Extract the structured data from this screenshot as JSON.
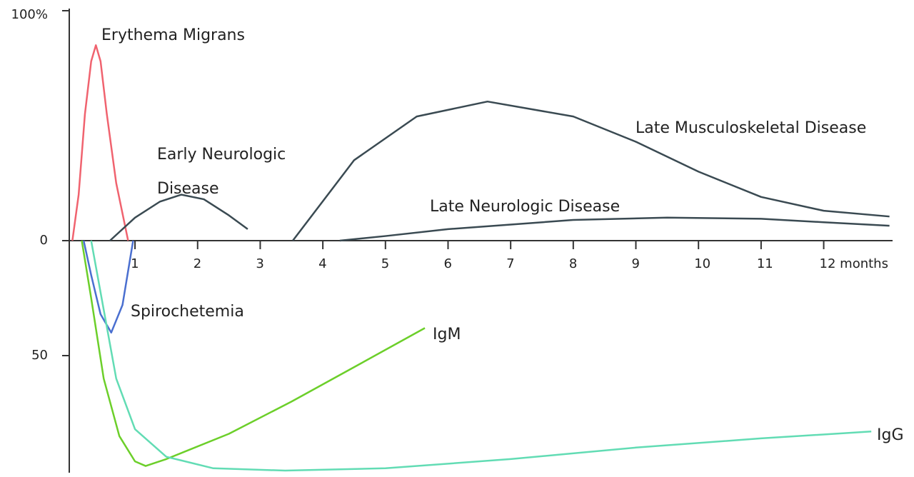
{
  "chart_data": {
    "type": "line",
    "xlim": [
      -0.05,
      13.1
    ],
    "ylim": [
      -100,
      100
    ],
    "xticks": [
      1,
      2,
      3,
      4,
      5,
      6,
      7,
      8,
      9,
      10,
      11,
      {
        "value": 12,
        "label": "12 months"
      }
    ],
    "yticks": [
      {
        "value": 100,
        "label": "100%"
      },
      0,
      {
        "value": -50,
        "label": "50"
      }
    ],
    "series": [
      {
        "name": "Erythema Migrans",
        "color": "#f0636f",
        "x": [
          0,
          0.1,
          0.2,
          0.3,
          0.375,
          0.45,
          0.55,
          0.7,
          0.89
        ],
        "values": [
          0,
          20,
          55,
          78,
          85,
          78,
          55,
          25,
          0
        ]
      },
      {
        "name": "Early Neurologic Disease",
        "color": "#3a4a52",
        "x": [
          0.6,
          1.0,
          1.4,
          1.74,
          2.1,
          2.5,
          2.8
        ],
        "values": [
          0,
          10,
          17,
          20,
          18,
          11,
          5
        ]
      },
      {
        "name": "Late Musculoskeletal Disease",
        "color": "#3a4a52",
        "x": [
          3.52,
          4.5,
          5.5,
          6.63,
          8,
          9,
          10,
          11,
          12,
          13.05
        ],
        "values": [
          0,
          35,
          54,
          60.5,
          54,
          43,
          30,
          19,
          13,
          10.5
        ]
      },
      {
        "name": "Late Neurologic Disease",
        "color": "#3a4a52",
        "x": [
          4.27,
          5,
          6,
          7,
          8,
          9.5,
          11,
          12,
          13.05
        ],
        "values": [
          0,
          2,
          5,
          7,
          9,
          10,
          9.5,
          8,
          6.5
        ]
      },
      {
        "name": "Spirochetemia",
        "color": "#4a6fd0",
        "x": [
          0.18,
          0.3,
          0.45,
          0.62,
          0.8,
          0.97
        ],
        "values": [
          0,
          -15,
          -32,
          -40,
          -28,
          0
        ]
      },
      {
        "name": "IgM",
        "color": "#6ccf2a",
        "x": [
          0.15,
          0.3,
          0.5,
          0.75,
          1.0,
          1.17,
          1.5,
          2.5,
          3.5,
          4.5,
          5.63
        ],
        "values": [
          0,
          -25,
          -60,
          -85,
          -96,
          -98,
          -95,
          -84,
          -70,
          -55,
          -38
        ]
      },
      {
        "name": "IgG",
        "color": "#62dcb4",
        "x": [
          0.3,
          0.5,
          0.7,
          1.0,
          1.5,
          2.25,
          3.4,
          5,
          7,
          9,
          11,
          12.76
        ],
        "values": [
          0,
          -30,
          -60,
          -82,
          -94,
          -99,
          -100,
          -99,
          -95,
          -90,
          -86,
          -83
        ]
      }
    ]
  }
}
